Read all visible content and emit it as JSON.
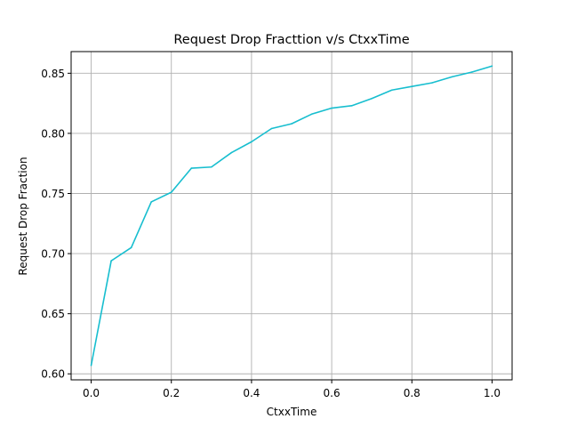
{
  "chart_data": {
    "type": "line",
    "title": "Request Drop Fracttion v/s CtxxTime",
    "xlabel": "CtxxTime",
    "ylabel": "Request Drop Fraction",
    "xlim": [
      -0.05,
      1.05
    ],
    "ylim": [
      0.595,
      0.868
    ],
    "grid": true,
    "x_ticks": [
      0.0,
      0.2,
      0.4,
      0.6,
      0.8,
      1.0
    ],
    "x_tick_labels": [
      "0.0",
      "0.2",
      "0.4",
      "0.6",
      "0.8",
      "1.0"
    ],
    "y_ticks": [
      0.6,
      0.65,
      0.7,
      0.75,
      0.8,
      0.85
    ],
    "y_tick_labels": [
      "0.60",
      "0.65",
      "0.70",
      "0.75",
      "0.80",
      "0.85"
    ],
    "series": [
      {
        "color": "#17becf",
        "x": [
          0.0,
          0.05,
          0.1,
          0.15,
          0.2,
          0.25,
          0.3,
          0.35,
          0.4,
          0.45,
          0.5,
          0.55,
          0.6,
          0.65,
          0.7,
          0.75,
          0.8,
          0.85,
          0.9,
          0.95,
          1.0
        ],
        "y": [
          0.607,
          0.694,
          0.705,
          0.743,
          0.751,
          0.771,
          0.772,
          0.784,
          0.793,
          0.804,
          0.808,
          0.816,
          0.821,
          0.823,
          0.829,
          0.836,
          0.839,
          0.842,
          0.847,
          0.851,
          0.856
        ]
      }
    ],
    "colors": {
      "grid": "#b0b0b0",
      "axes": "#000000",
      "background": "#ffffff"
    }
  }
}
